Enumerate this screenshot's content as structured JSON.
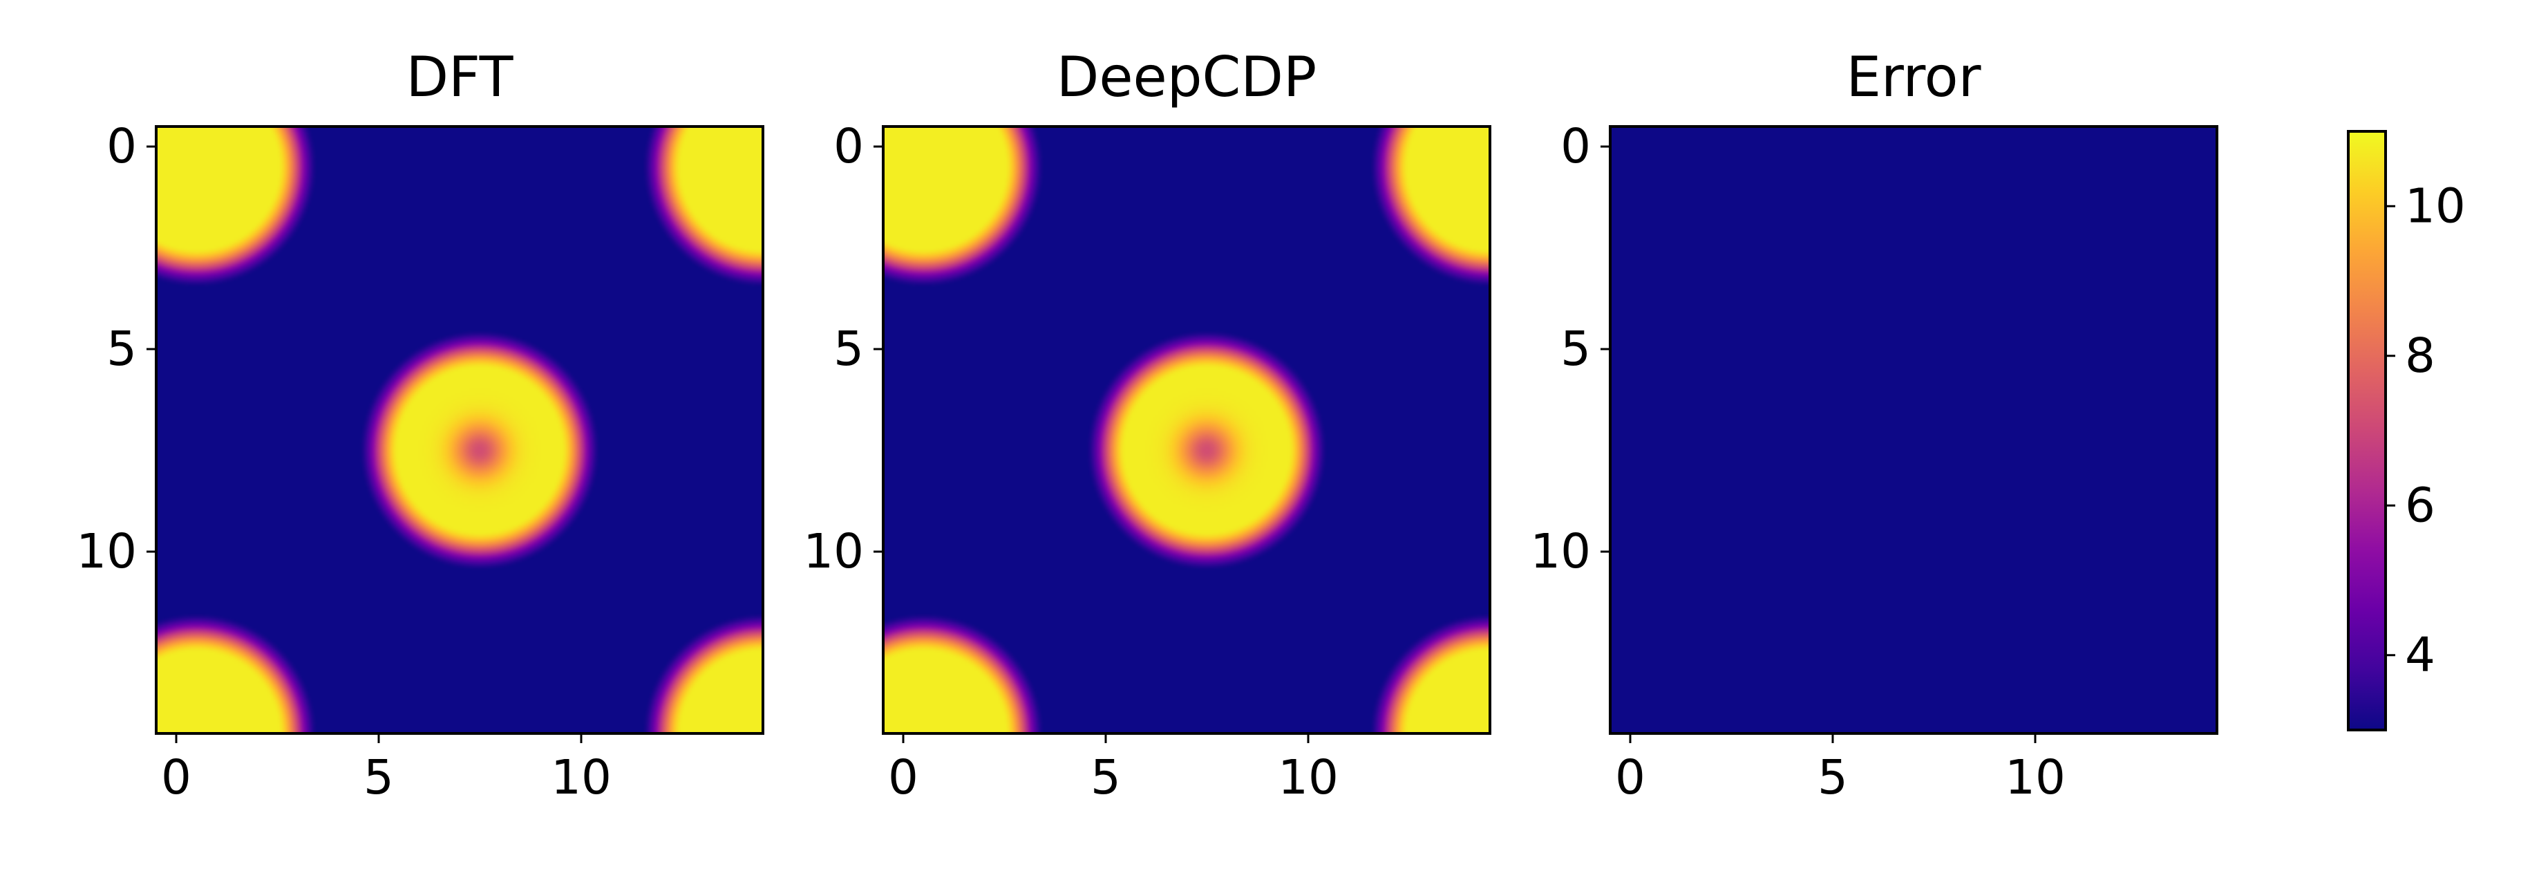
{
  "chart_data": {
    "type": "heatmap",
    "colormap": "plasma",
    "colormap_stops": [
      "#0d0887",
      "#41049d",
      "#6a00a8",
      "#8f0da4",
      "#b12a90",
      "#cc4778",
      "#e16462",
      "#f2844b",
      "#fca636",
      "#fcce25",
      "#f0f921"
    ],
    "clim": [
      3.0,
      11.0
    ],
    "grid_size": 15,
    "panels": [
      {
        "title": "DFT",
        "x_ticks": [
          "0",
          "5",
          "10"
        ],
        "y_ticks": [
          "0",
          "5",
          "10"
        ],
        "field": {
          "background": 3.0,
          "peak": 10.8,
          "dip_at_center": 7.2,
          "blobs": [
            {
              "center": [
                7.5,
                7.5
              ],
              "flat_radius": 2.0,
              "decay_radius": 3.0,
              "dip": true
            },
            {
              "center": [
                0.5,
                0.5
              ],
              "flat_radius": 2.0,
              "decay_radius": 3.0,
              "dip": false
            },
            {
              "center": [
                14.5,
                0.5
              ],
              "flat_radius": 2.0,
              "decay_radius": 3.0,
              "dip": false
            },
            {
              "center": [
                0.5,
                14.5
              ],
              "flat_radius": 2.0,
              "decay_radius": 3.0,
              "dip": false
            },
            {
              "center": [
                14.5,
                14.5
              ],
              "flat_radius": 2.0,
              "decay_radius": 3.0,
              "dip": false
            }
          ]
        }
      },
      {
        "title": "DeepCDP",
        "x_ticks": [
          "0",
          "5",
          "10"
        ],
        "y_ticks": [
          "0",
          "5",
          "10"
        ],
        "field": {
          "background": 3.0,
          "peak": 10.8,
          "dip_at_center": 7.2,
          "blobs": [
            {
              "center": [
                7.5,
                7.5
              ],
              "flat_radius": 2.0,
              "decay_radius": 3.0,
              "dip": true
            },
            {
              "center": [
                0.5,
                0.5
              ],
              "flat_radius": 2.0,
              "decay_radius": 3.0,
              "dip": false
            },
            {
              "center": [
                14.5,
                0.5
              ],
              "flat_radius": 2.0,
              "decay_radius": 3.0,
              "dip": false
            },
            {
              "center": [
                0.5,
                14.5
              ],
              "flat_radius": 2.0,
              "decay_radius": 3.0,
              "dip": false
            },
            {
              "center": [
                14.5,
                14.5
              ],
              "flat_radius": 2.0,
              "decay_radius": 3.0,
              "dip": false
            }
          ]
        }
      },
      {
        "title": "Error",
        "x_ticks": [
          "0",
          "5",
          "10"
        ],
        "y_ticks": [
          "0",
          "5",
          "10"
        ],
        "field": {
          "background": 3.0,
          "peak": 3.0,
          "dip_at_center": 3.0,
          "blobs": []
        }
      }
    ],
    "colorbar": {
      "ticks": [
        "4",
        "6",
        "8",
        "10"
      ]
    }
  }
}
